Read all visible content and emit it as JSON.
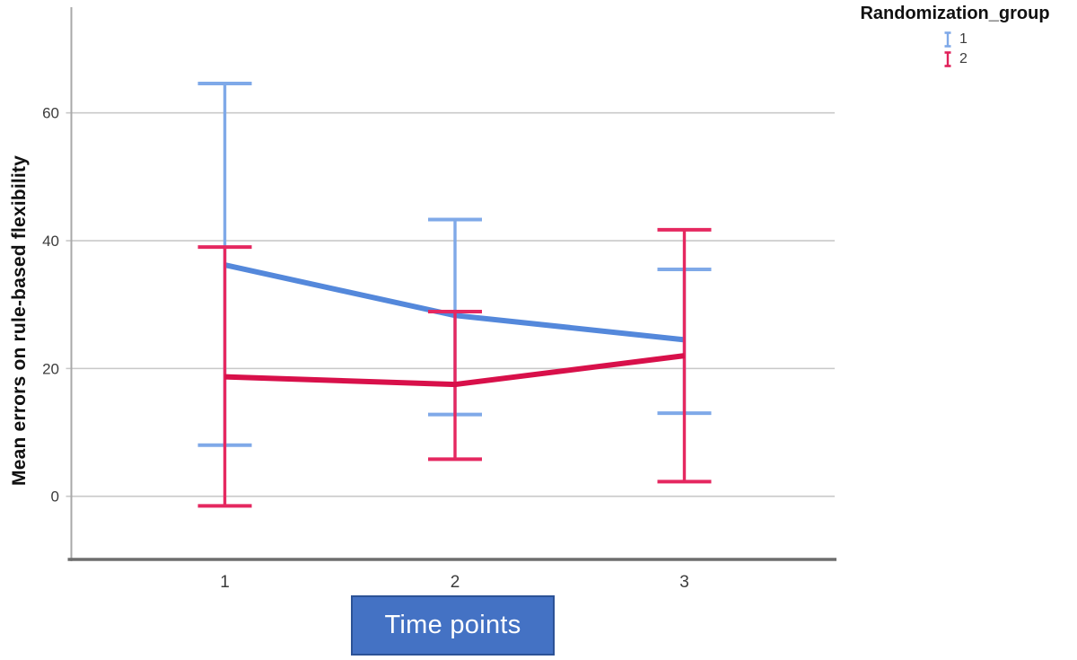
{
  "figure": {
    "y_axis_title": "Mean errors on rule-based flexibility",
    "x_axis_title": "Time points",
    "legend": {
      "title": "Randomization_group",
      "entries": [
        {
          "label": "1",
          "color": "#7FA9E8"
        },
        {
          "label": "2",
          "color": "#E0215A"
        }
      ]
    },
    "colors": {
      "group1_line": "#5488DB",
      "group1_error": "#7FA9E8",
      "group2_line": "#D8104A",
      "group2_error": "#E52860",
      "xlabel_box_fill": "#4472C4",
      "xlabel_box_border": "#2C5296",
      "gridline": "#C9C9C9",
      "x_axis_line": "#6E6E6E",
      "y_axis_line": "#A8A8A8",
      "tick_text": "#3C3C3C"
    }
  },
  "chart_data": {
    "type": "line",
    "title": "",
    "xlabel": "Time points",
    "ylabel": "Mean errors on rule-based flexibility",
    "x": [
      1,
      2,
      3
    ],
    "xticklabels": [
      "1",
      "2",
      "3"
    ],
    "yticks": [
      0,
      20,
      40,
      60
    ],
    "ylim": [
      -10,
      76.5
    ],
    "grid": true,
    "legend_title": "Randomization_group",
    "legend_position": "top-right",
    "error_bar_style": "confidence-interval I-beams",
    "series": [
      {
        "name": "1",
        "color": "#5488DB",
        "error_color": "#7FA9E8",
        "means": [
          36.2,
          28.3,
          24.5
        ],
        "ci_low": [
          8.0,
          12.8,
          13.0
        ],
        "ci_high": [
          64.6,
          43.3,
          35.5
        ]
      },
      {
        "name": "2",
        "color": "#D8104A",
        "error_color": "#E52860",
        "means": [
          18.7,
          17.5,
          22.0
        ],
        "ci_low": [
          -1.5,
          5.8,
          2.3
        ],
        "ci_high": [
          39.0,
          28.9,
          41.7
        ]
      }
    ]
  }
}
